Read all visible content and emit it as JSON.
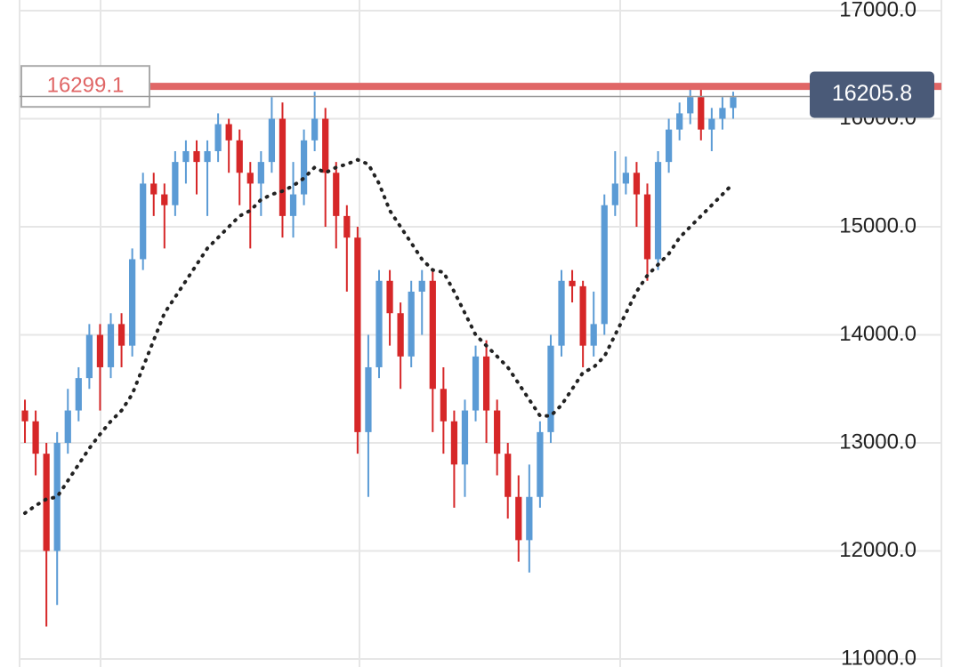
{
  "chart_data": {
    "type": "candlestick",
    "up_color": "#5b9bd5",
    "down_color": "#d62728",
    "ylim": [
      10926,
      17099
    ],
    "yticks": [
      {
        "value": 11000,
        "label": "11000.0"
      },
      {
        "value": 12000,
        "label": "12000.0"
      },
      {
        "value": 13000,
        "label": "13000.0"
      },
      {
        "value": 14000,
        "label": "14000.0"
      },
      {
        "value": 15000,
        "label": "15000.0"
      },
      {
        "value": 16000,
        "label": "16000.0"
      },
      {
        "value": 17000,
        "label": "17000.0"
      }
    ],
    "grid": true,
    "open": [
      13300,
      13200,
      12900,
      12000,
      13000,
      13300,
      13600,
      14000,
      13700,
      14100,
      13900,
      14700,
      15400,
      15300,
      15200,
      15600,
      15700,
      15600,
      15700,
      15950,
      15800,
      15500,
      15400,
      15600,
      16000,
      15100,
      15300,
      15800,
      16000,
      15500,
      15100,
      14900,
      13100,
      13700,
      14500,
      14200,
      13800,
      14400,
      14500,
      13500,
      13200,
      12800,
      13300,
      13800,
      13300,
      12900,
      12500,
      12100,
      12500,
      13100,
      13900,
      14500,
      14450,
      13900,
      14100,
      15200,
      15400,
      15500,
      15300,
      14700,
      15600,
      15900,
      16050,
      16200,
      15900,
      16000,
      16100
    ],
    "high": [
      13400,
      13300,
      13000,
      13100,
      13500,
      13700,
      14100,
      14100,
      14200,
      14200,
      14800,
      15500,
      15500,
      15400,
      15700,
      15800,
      15800,
      15800,
      16050,
      16000,
      15900,
      15600,
      15700,
      16200,
      16150,
      15600,
      15900,
      16250,
      16100,
      15600,
      15200,
      15000,
      14000,
      14600,
      14600,
      14300,
      14500,
      14600,
      14600,
      13700,
      13300,
      13400,
      13900,
      13950,
      13400,
      13000,
      12700,
      12800,
      13200,
      14000,
      14600,
      14600,
      14500,
      14400,
      15300,
      15700,
      15650,
      15600,
      15400,
      15700,
      16000,
      16150,
      16300,
      16300,
      16100,
      16200,
      16250
    ],
    "low": [
      13000,
      12700,
      11300,
      11500,
      12900,
      13200,
      13500,
      13300,
      13600,
      13700,
      13800,
      14600,
      15100,
      14800,
      15100,
      15400,
      15300,
      15100,
      15600,
      15500,
      15200,
      14800,
      15100,
      15500,
      14900,
      14900,
      15200,
      15700,
      15000,
      14800,
      14400,
      12900,
      12500,
      13600,
      13900,
      13500,
      13700,
      14000,
      13100,
      12900,
      12400,
      12500,
      13200,
      13000,
      12700,
      12300,
      11900,
      11800,
      12400,
      13000,
      13800,
      14300,
      13700,
      13800,
      14000,
      15100,
      15300,
      15000,
      14500,
      14600,
      15500,
      15800,
      15950,
      15800,
      15700,
      15900,
      16000
    ],
    "close": [
      13200,
      12900,
      12000,
      13000,
      13300,
      13600,
      14000,
      13700,
      14100,
      13900,
      14700,
      15400,
      15300,
      15200,
      15600,
      15700,
      15600,
      15700,
      15950,
      15800,
      15500,
      15400,
      15600,
      16000,
      15100,
      15300,
      15800,
      16000,
      15500,
      15100,
      14900,
      13100,
      13700,
      14500,
      14200,
      13800,
      14400,
      14500,
      13500,
      13200,
      12800,
      13300,
      13800,
      13300,
      12900,
      12500,
      12100,
      12500,
      13100,
      13900,
      14500,
      14450,
      13900,
      14100,
      15200,
      15400,
      15500,
      15300,
      14700,
      15600,
      15900,
      16050,
      16200,
      15900,
      16000,
      16100,
      16200
    ],
    "moving_average": {
      "color": "#222222",
      "values": [
        12350,
        12420,
        12480,
        12500,
        12650,
        12800,
        12950,
        13080,
        13200,
        13300,
        13450,
        13700,
        13950,
        14200,
        14350,
        14500,
        14650,
        14800,
        14900,
        15000,
        15100,
        15150,
        15250,
        15300,
        15330,
        15380,
        15450,
        15550,
        15500,
        15550,
        15580,
        15620,
        15580,
        15400,
        15150,
        15000,
        14850,
        14700,
        14600,
        14580,
        14400,
        14200,
        14000,
        13900,
        13800,
        13700,
        13550,
        13400,
        13250,
        13250,
        13350,
        13500,
        13650,
        13700,
        13800,
        14000,
        14200,
        14400,
        14550,
        14650,
        14750,
        14900,
        15000,
        15100,
        15200,
        15300,
        15400
      ]
    },
    "high_line": {
      "value": 16299.1,
      "color": "#e06666"
    },
    "last_price": {
      "value": 16205.8,
      "color": "#4a5a78"
    }
  }
}
